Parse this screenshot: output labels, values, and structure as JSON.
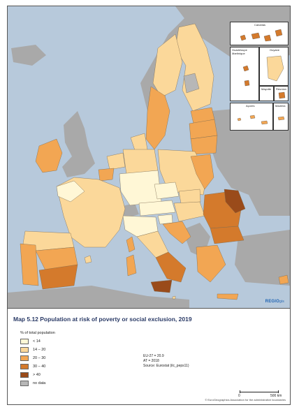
{
  "caption": "Map 5.12 Population at risk of poverty or social exclusion, 2019",
  "legend": {
    "title": "% of total population",
    "items": [
      {
        "label": "< 14",
        "color": "#fff7d6"
      },
      {
        "label": "14 – 20",
        "color": "#fbd89a"
      },
      {
        "label": "20 – 30",
        "color": "#f2a653"
      },
      {
        "label": "30 – 40",
        "color": "#d47a2c"
      },
      {
        "label": "> 40",
        "color": "#9a4b1a"
      },
      {
        "label": "no data",
        "color": "#b7b7b7"
      }
    ]
  },
  "notes": [
    "EU-27 = 20.9",
    "AT = 2018",
    "Source: Eurostat (ilc_peps11)"
  ],
  "insets": [
    {
      "label": "Canarias"
    },
    {
      "label": "Guadeloupe Martinique"
    },
    {
      "label": "Guyane"
    },
    {
      "label": "Mayotte"
    },
    {
      "label": "Réunion"
    },
    {
      "label": "Açores"
    },
    {
      "label": "Madeira"
    }
  ],
  "scale": {
    "start": "0",
    "end": "500 km"
  },
  "logo": {
    "main": "REGIO",
    "sub": "gis"
  },
  "copyright": "© EuroGeographics Association for the administrative boundaries",
  "colors": {
    "sea": "#b7c9db",
    "non_eu_land": "#a9a9a9",
    "lt14": "#fff7d6",
    "c14_20": "#fbd89a",
    "c20_30": "#f2a653",
    "c30_40": "#d47a2c",
    "gt40": "#9a4b1a",
    "no_data": "#b7b7b7"
  }
}
